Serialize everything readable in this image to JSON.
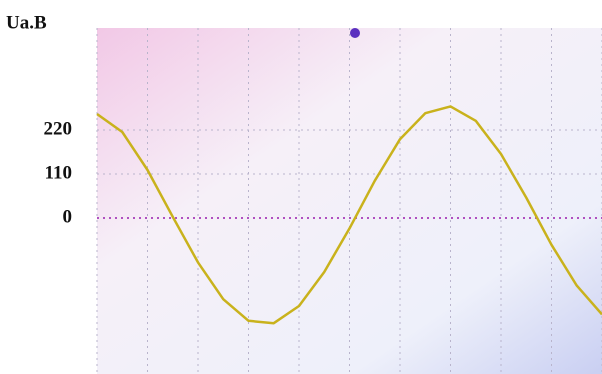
{
  "chart_data": {
    "type": "line",
    "ylabel": "Ua.B",
    "x": [
      0,
      0.5,
      1,
      1.5,
      2,
      2.5,
      3,
      3.5,
      4,
      4.5,
      5,
      5.5,
      6,
      6.5,
      7,
      7.5,
      8,
      8.5,
      9,
      9.5,
      10
    ],
    "series": [
      {
        "color": "#c9b21c",
        "values": [
          260,
          215,
          120,
          3,
          -111,
          -203,
          -257,
          -263,
          -220,
          -135,
          -26,
          93,
          197,
          262,
          279,
          243,
          160,
          51,
          -67,
          -169,
          -241
        ]
      }
    ],
    "xlim": [
      0,
      10
    ],
    "xticks": [
      0,
      1,
      2,
      3,
      4,
      5,
      6,
      7,
      8,
      9,
      10
    ],
    "ylim": [
      -390,
      475
    ],
    "yticks": [
      0,
      110,
      220
    ],
    "grid": true
  }
}
